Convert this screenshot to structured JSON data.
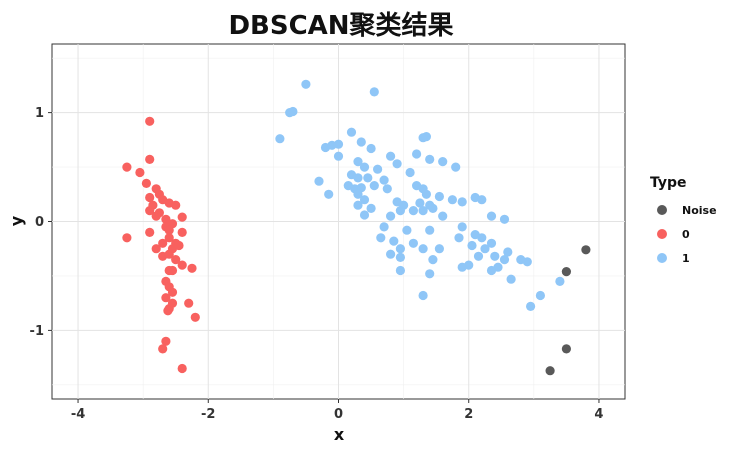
{
  "chart_data": {
    "type": "scatter",
    "title": "DBSCAN聚类结果",
    "xlabel": "x",
    "ylabel": "y",
    "xlim": [
      -4.4,
      4.4
    ],
    "ylim": [
      -1.63,
      1.63
    ],
    "x_ticks": [
      -4,
      -2,
      0,
      2,
      4
    ],
    "x_tick_labels": [
      "-4",
      "-2",
      "0",
      "2",
      "4"
    ],
    "y_ticks": [
      -1,
      0,
      1
    ],
    "y_tick_labels": [
      "-1",
      "0",
      "1"
    ],
    "grid": true,
    "legend": {
      "title": "Type",
      "position": "right",
      "entries": [
        "Noise",
        "0",
        "1"
      ]
    },
    "colors": {
      "Noise": "#595959",
      "0": "#f8615f",
      "1": "#8fc6f7"
    },
    "series": [
      {
        "name": "Noise",
        "points": [
          [
            3.8,
            -0.26
          ],
          [
            3.5,
            -0.46
          ],
          [
            3.5,
            -1.17
          ],
          [
            3.25,
            -1.37
          ]
        ]
      },
      {
        "name": "0",
        "points": [
          [
            -2.9,
            0.92
          ],
          [
            -3.25,
            0.5
          ],
          [
            -3.05,
            0.45
          ],
          [
            -2.9,
            0.57
          ],
          [
            -2.95,
            0.35
          ],
          [
            -3.25,
            -0.15
          ],
          [
            -2.9,
            0.22
          ],
          [
            -2.8,
            0.3
          ],
          [
            -2.75,
            0.25
          ],
          [
            -2.7,
            0.2
          ],
          [
            -2.6,
            0.17
          ],
          [
            -2.5,
            0.15
          ],
          [
            -2.85,
            0.15
          ],
          [
            -2.9,
            0.1
          ],
          [
            -2.75,
            0.08
          ],
          [
            -2.8,
            0.05
          ],
          [
            -2.65,
            0.02
          ],
          [
            -2.4,
            0.04
          ],
          [
            -2.55,
            -0.02
          ],
          [
            -2.65,
            -0.05
          ],
          [
            -2.9,
            -0.1
          ],
          [
            -2.4,
            -0.1
          ],
          [
            -2.6,
            -0.15
          ],
          [
            -2.7,
            -0.2
          ],
          [
            -2.5,
            -0.2
          ],
          [
            -2.8,
            -0.25
          ],
          [
            -2.55,
            -0.25
          ],
          [
            -2.45,
            -0.22
          ],
          [
            -2.7,
            -0.32
          ],
          [
            -2.6,
            -0.3
          ],
          [
            -2.25,
            -0.43
          ],
          [
            -2.4,
            -0.4
          ],
          [
            -2.6,
            -0.45
          ],
          [
            -2.65,
            -0.55
          ],
          [
            -2.6,
            -0.6
          ],
          [
            -2.55,
            -0.65
          ],
          [
            -2.65,
            -0.7
          ],
          [
            -2.6,
            -0.8
          ],
          [
            -2.55,
            -0.75
          ],
          [
            -2.3,
            -0.75
          ],
          [
            -2.2,
            -0.88
          ],
          [
            -2.62,
            -0.82
          ],
          [
            -2.65,
            -1.1
          ],
          [
            -2.7,
            -1.17
          ],
          [
            -2.4,
            -1.35
          ],
          [
            -2.55,
            -0.45
          ],
          [
            -2.5,
            -0.35
          ],
          [
            -2.6,
            -0.08
          ]
        ]
      },
      {
        "name": "1",
        "points": [
          [
            -0.5,
            1.26
          ],
          [
            -0.75,
            1.0
          ],
          [
            -0.7,
            1.01
          ],
          [
            0.55,
            1.19
          ],
          [
            -0.9,
            0.76
          ],
          [
            1.3,
            0.77
          ],
          [
            1.35,
            0.78
          ],
          [
            0.2,
            0.82
          ],
          [
            0.35,
            0.73
          ],
          [
            -0.2,
            0.68
          ],
          [
            -0.1,
            0.7
          ],
          [
            0.0,
            0.71
          ],
          [
            0.5,
            0.67
          ],
          [
            0.0,
            0.6
          ],
          [
            0.3,
            0.55
          ],
          [
            0.8,
            0.6
          ],
          [
            1.2,
            0.62
          ],
          [
            1.4,
            0.57
          ],
          [
            1.6,
            0.55
          ],
          [
            1.8,
            0.5
          ],
          [
            0.4,
            0.5
          ],
          [
            0.6,
            0.48
          ],
          [
            0.9,
            0.53
          ],
          [
            1.1,
            0.45
          ],
          [
            0.2,
            0.43
          ],
          [
            0.3,
            0.4
          ],
          [
            0.45,
            0.4
          ],
          [
            0.7,
            0.38
          ],
          [
            -0.3,
            0.37
          ],
          [
            0.15,
            0.33
          ],
          [
            0.25,
            0.3
          ],
          [
            0.35,
            0.31
          ],
          [
            0.55,
            0.33
          ],
          [
            0.75,
            0.3
          ],
          [
            1.2,
            0.33
          ],
          [
            1.3,
            0.3
          ],
          [
            1.35,
            0.25
          ],
          [
            1.55,
            0.23
          ],
          [
            1.75,
            0.2
          ],
          [
            2.1,
            0.22
          ],
          [
            2.2,
            0.2
          ],
          [
            -0.15,
            0.25
          ],
          [
            0.3,
            0.25
          ],
          [
            0.4,
            0.2
          ],
          [
            0.9,
            0.18
          ],
          [
            1.0,
            0.15
          ],
          [
            1.25,
            0.17
          ],
          [
            1.4,
            0.15
          ],
          [
            1.9,
            0.18
          ],
          [
            0.3,
            0.15
          ],
          [
            0.5,
            0.12
          ],
          [
            0.95,
            0.1
          ],
          [
            1.15,
            0.1
          ],
          [
            1.3,
            0.1
          ],
          [
            1.45,
            0.12
          ],
          [
            0.4,
            0.06
          ],
          [
            0.8,
            0.05
          ],
          [
            1.6,
            0.05
          ],
          [
            2.35,
            0.05
          ],
          [
            2.55,
            0.02
          ],
          [
            0.7,
            -0.05
          ],
          [
            1.05,
            -0.08
          ],
          [
            1.4,
            -0.08
          ],
          [
            1.9,
            -0.05
          ],
          [
            2.1,
            -0.12
          ],
          [
            2.2,
            -0.15
          ],
          [
            0.65,
            -0.15
          ],
          [
            0.85,
            -0.18
          ],
          [
            1.15,
            -0.2
          ],
          [
            1.85,
            -0.15
          ],
          [
            2.35,
            -0.2
          ],
          [
            0.95,
            -0.25
          ],
          [
            1.3,
            -0.25
          ],
          [
            1.55,
            -0.25
          ],
          [
            2.05,
            -0.22
          ],
          [
            2.25,
            -0.25
          ],
          [
            2.6,
            -0.28
          ],
          [
            0.8,
            -0.3
          ],
          [
            0.95,
            -0.33
          ],
          [
            1.45,
            -0.35
          ],
          [
            2.15,
            -0.32
          ],
          [
            2.4,
            -0.32
          ],
          [
            2.55,
            -0.35
          ],
          [
            2.8,
            -0.35
          ],
          [
            2.9,
            -0.37
          ],
          [
            2.45,
            -0.42
          ],
          [
            2.0,
            -0.4
          ],
          [
            1.9,
            -0.42
          ],
          [
            0.95,
            -0.45
          ],
          [
            1.4,
            -0.48
          ],
          [
            2.35,
            -0.45
          ],
          [
            2.65,
            -0.53
          ],
          [
            3.4,
            -0.55
          ],
          [
            3.1,
            -0.68
          ],
          [
            2.95,
            -0.78
          ],
          [
            1.3,
            -0.68
          ]
        ]
      }
    ]
  }
}
